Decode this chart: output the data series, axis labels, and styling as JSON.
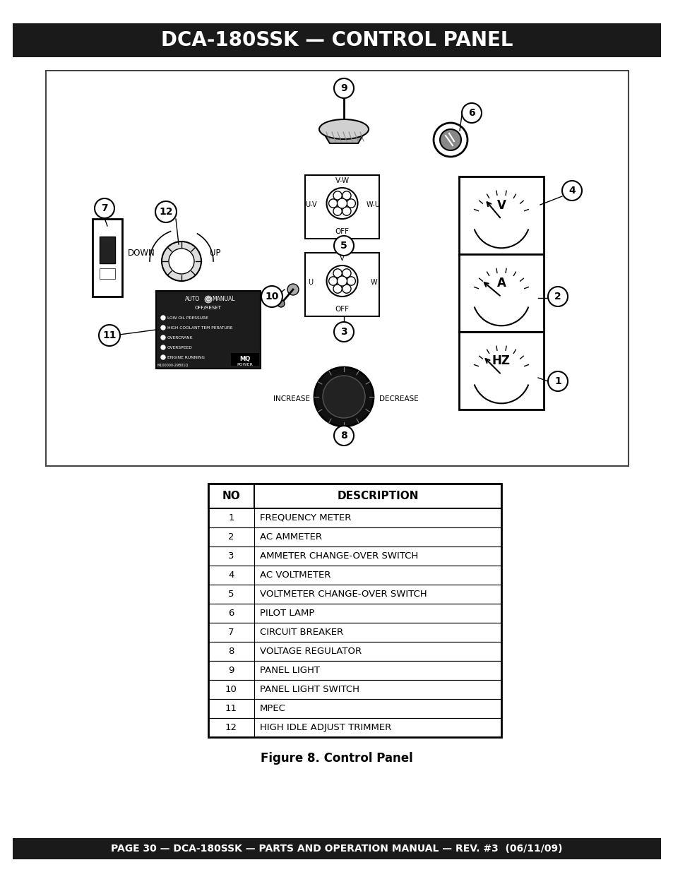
{
  "title": "DCA-180SSK — CONTROL PANEL",
  "title_bg": "#1a1a1a",
  "title_color": "#ffffff",
  "title_fontsize": 20,
  "footer_text": "PAGE 30 — DCA-180SSK — PARTS AND OPERATION MANUAL — REV. #3  (06/11/09)",
  "footer_bg": "#1a1a1a",
  "footer_color": "#ffffff",
  "footer_fontsize": 10,
  "caption": "Figure 8. Control Panel",
  "caption_fontsize": 12,
  "table_headers": [
    "NO",
    "DESCRIPTION"
  ],
  "table_rows": [
    [
      "1",
      "FREQUENCY METER"
    ],
    [
      "2",
      "AC AMMETER"
    ],
    [
      "3",
      "AMMETER CHANGE-OVER SWITCH"
    ],
    [
      "4",
      "AC VOLTMETER"
    ],
    [
      "5",
      "VOLTMETER CHANGE-OVER SWITCH"
    ],
    [
      "6",
      "PILOT LAMP"
    ],
    [
      "7",
      "CIRCUIT BREAKER"
    ],
    [
      "8",
      "VOLTAGE REGULATOR"
    ],
    [
      "9",
      "PANEL LIGHT"
    ],
    [
      "10",
      "PANEL LIGHT SWITCH"
    ],
    [
      "11",
      "MPEC"
    ],
    [
      "12",
      "HIGH IDLE ADJUST TRIMMER"
    ]
  ],
  "bg_color": "#ffffff"
}
